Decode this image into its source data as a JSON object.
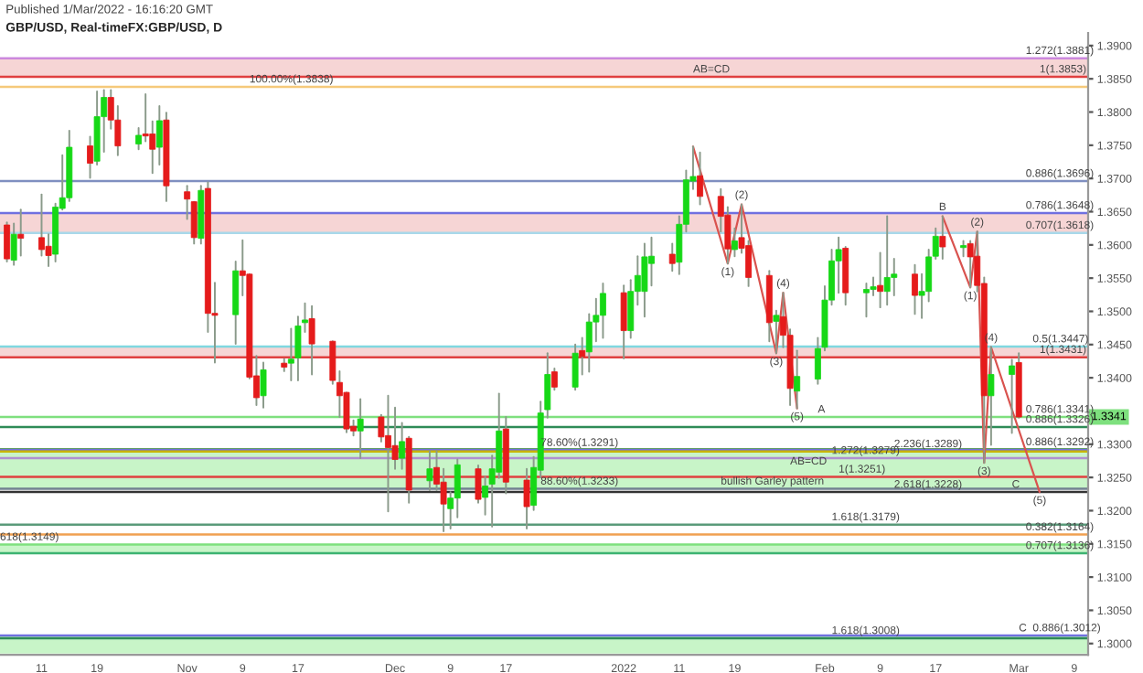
{
  "chart_data": {
    "type": "candlestick",
    "title": "GBP/USD, Real-timeFX:GBP/USD, D",
    "subtitle": "Published 1/Mar/2022 - 16:16:20 GMT",
    "x": [
      "2021-10-06",
      "2021-10-07",
      "2021-10-08",
      "2021-10-11",
      "2021-10-12",
      "2021-10-13",
      "2021-10-14",
      "2021-10-15",
      "2021-10-18",
      "2021-10-19",
      "2021-10-20",
      "2021-10-21",
      "2021-10-22",
      "2021-10-25",
      "2021-10-26",
      "2021-10-27",
      "2021-10-28",
      "2021-10-29",
      "2021-11-01",
      "2021-11-02",
      "2021-11-03",
      "2021-11-04",
      "2021-11-05",
      "2021-11-08",
      "2021-11-09",
      "2021-11-10",
      "2021-11-11",
      "2021-11-12",
      "2021-11-15",
      "2021-11-16",
      "2021-11-17",
      "2021-11-18",
      "2021-11-19",
      "2021-11-22",
      "2021-11-23",
      "2021-11-24",
      "2021-11-25",
      "2021-11-26",
      "2021-11-29",
      "2021-11-30",
      "2021-12-01",
      "2021-12-02",
      "2021-12-03",
      "2021-12-06",
      "2021-12-07",
      "2021-12-08",
      "2021-12-09",
      "2021-12-10",
      "2021-12-13",
      "2021-12-14",
      "2021-12-15",
      "2021-12-16",
      "2021-12-17",
      "2021-12-20",
      "2021-12-21",
      "2021-12-22",
      "2021-12-23",
      "2021-12-24",
      "2021-12-27",
      "2021-12-28",
      "2021-12-29",
      "2021-12-30",
      "2021-12-31",
      "2022-01-03",
      "2022-01-04",
      "2022-01-05",
      "2022-01-06",
      "2022-01-07",
      "2022-01-10",
      "2022-01-11",
      "2022-01-12",
      "2022-01-13",
      "2022-01-14",
      "2022-01-17",
      "2022-01-18",
      "2022-01-19",
      "2022-01-20",
      "2022-01-21",
      "2022-01-24",
      "2022-01-25",
      "2022-01-26",
      "2022-01-27",
      "2022-01-28",
      "2022-01-31",
      "2022-02-01",
      "2022-02-02",
      "2022-02-03",
      "2022-02-04",
      "2022-02-07",
      "2022-02-08",
      "2022-02-09",
      "2022-02-10",
      "2022-02-11",
      "2022-02-14",
      "2022-02-15",
      "2022-02-16",
      "2022-02-17",
      "2022-02-18",
      "2022-02-21",
      "2022-02-22",
      "2022-02-23",
      "2022-02-24",
      "2022-02-25",
      "2022-02-28",
      "2022-03-01"
    ],
    "ohlc": [
      [
        1.363,
        1.3634,
        1.3575,
        1.3579
      ],
      [
        1.3577,
        1.3632,
        1.357,
        1.3616
      ],
      [
        1.3616,
        1.3653,
        1.3584,
        1.361
      ],
      [
        1.3611,
        1.3676,
        1.3584,
        1.3593
      ],
      [
        1.3598,
        1.3616,
        1.3568,
        1.3584
      ],
      [
        1.3586,
        1.3662,
        1.3575,
        1.3657
      ],
      [
        1.3655,
        1.3735,
        1.3653,
        1.3671
      ],
      [
        1.3671,
        1.3772,
        1.3666,
        1.3747
      ],
      [
        1.3749,
        1.3763,
        1.3701,
        1.3723
      ],
      [
        1.3726,
        1.3831,
        1.3721,
        1.3793
      ],
      [
        1.3793,
        1.3833,
        1.374,
        1.3822
      ],
      [
        1.3822,
        1.3833,
        1.3775,
        1.3788
      ],
      [
        1.3788,
        1.3809,
        1.3735,
        1.3749
      ],
      [
        1.3752,
        1.3776,
        1.3744,
        1.3765
      ],
      [
        1.3767,
        1.3827,
        1.3756,
        1.3764
      ],
      [
        1.3767,
        1.3786,
        1.3708,
        1.3744
      ],
      [
        1.3747,
        1.3809,
        1.3721,
        1.3787
      ],
      [
        1.3788,
        1.3799,
        1.3666,
        1.3689
      ],
      [
        1.368,
        1.3689,
        1.3639,
        1.3669
      ],
      [
        1.3665,
        1.3665,
        1.3602,
        1.3611
      ],
      [
        1.361,
        1.3689,
        1.3602,
        1.3682
      ],
      [
        1.3685,
        1.3694,
        1.3469,
        1.3497
      ],
      [
        1.3497,
        1.3543,
        1.3423,
        1.3494
      ],
      [
        1.3495,
        1.3575,
        1.3451,
        1.3561
      ],
      [
        1.3561,
        1.3607,
        1.3524,
        1.3554
      ],
      [
        1.3556,
        1.3556,
        1.3399,
        1.3401
      ],
      [
        1.3403,
        1.3433,
        1.3359,
        1.337
      ],
      [
        1.3373,
        1.3423,
        1.3355,
        1.3412
      ],
      [
        1.3422,
        1.3428,
        1.341,
        1.3416
      ],
      [
        1.3422,
        1.3474,
        1.3396,
        1.3428
      ],
      [
        1.343,
        1.3492,
        1.3396,
        1.3478
      ],
      [
        1.3483,
        1.3512,
        1.3469,
        1.3487
      ],
      [
        1.3489,
        1.3508,
        1.3405,
        1.3451
      ],
      [
        1.3455,
        1.3455,
        1.3391,
        1.3396
      ],
      [
        1.3393,
        1.341,
        1.3341,
        1.3373
      ],
      [
        1.3378,
        1.3378,
        1.3318,
        1.3323
      ],
      [
        1.3327,
        1.3336,
        1.3313,
        1.332
      ],
      [
        1.332,
        1.3368,
        1.3279,
        1.3338
      ],
      [
        1.3341,
        1.3344,
        1.3304,
        1.3311
      ],
      [
        1.3313,
        1.3373,
        1.3199,
        1.3295
      ],
      [
        1.3298,
        1.3355,
        1.3263,
        1.3277
      ],
      [
        1.3279,
        1.3332,
        1.3263,
        1.3304
      ],
      [
        1.3309,
        1.3311,
        1.3212,
        1.3231
      ],
      [
        1.3245,
        1.3289,
        1.3231,
        1.3263
      ],
      [
        1.3265,
        1.3289,
        1.3231,
        1.324
      ],
      [
        1.3243,
        1.3263,
        1.3169,
        1.321
      ],
      [
        1.3203,
        1.3228,
        1.3173,
        1.3219
      ],
      [
        1.3219,
        1.3277,
        1.319,
        1.3269
      ],
      [
        1.3263,
        1.3268,
        1.3212,
        1.3217
      ],
      [
        1.322,
        1.3251,
        1.3194,
        1.3237
      ],
      [
        1.324,
        1.3283,
        1.3176,
        1.3263
      ],
      [
        1.3258,
        1.3376,
        1.3249,
        1.332
      ],
      [
        1.3323,
        1.3341,
        1.3226,
        1.3243
      ],
      [
        1.3246,
        1.3263,
        1.3173,
        1.3206
      ],
      [
        1.3208,
        1.3281,
        1.3201,
        1.3265
      ],
      [
        1.3261,
        1.3364,
        1.325,
        1.3347
      ],
      [
        1.3352,
        1.3437,
        1.334,
        1.3405
      ],
      [
        1.3409,
        1.3414,
        1.3382,
        1.3386
      ],
      [
        1.3386,
        1.345,
        1.3382,
        1.3437
      ],
      [
        1.3441,
        1.346,
        1.3405,
        1.3432
      ],
      [
        1.3439,
        1.3496,
        1.3409,
        1.3484
      ],
      [
        1.3484,
        1.3519,
        1.3455,
        1.3494
      ],
      [
        1.3494,
        1.3542,
        1.346,
        1.3527
      ],
      [
        1.3528,
        1.3539,
        1.3429,
        1.3471
      ],
      [
        1.3471,
        1.3547,
        1.346,
        1.353
      ],
      [
        1.353,
        1.3583,
        1.351,
        1.3554
      ],
      [
        1.353,
        1.3602,
        1.3492,
        1.3582
      ],
      [
        1.3572,
        1.3611,
        1.3539,
        1.3583
      ],
      [
        1.3586,
        1.3602,
        1.3561,
        1.3572
      ],
      [
        1.3574,
        1.3643,
        1.3556,
        1.3631
      ],
      [
        1.3631,
        1.3712,
        1.362,
        1.3698
      ],
      [
        1.3696,
        1.3748,
        1.3684,
        1.3703
      ],
      [
        1.3704,
        1.3739,
        1.3661,
        1.3673
      ],
      [
        1.3673,
        1.3684,
        1.362,
        1.3643
      ],
      [
        1.3645,
        1.3657,
        1.3572,
        1.3594
      ],
      [
        1.3593,
        1.3625,
        1.3583,
        1.3606
      ],
      [
        1.3611,
        1.3661,
        1.3588,
        1.3595
      ],
      [
        1.3599,
        1.3606,
        1.3538,
        1.3551
      ],
      [
        1.3554,
        1.3561,
        1.3455,
        1.3483
      ],
      [
        1.3485,
        1.3501,
        1.3437,
        1.3494
      ],
      [
        1.3492,
        1.3528,
        1.3446,
        1.3464
      ],
      [
        1.3464,
        1.3473,
        1.3359,
        1.3384
      ],
      [
        1.338,
        1.3441,
        1.3354,
        1.3402
      ],
      [
        1.3398,
        1.346,
        1.3391,
        1.3444
      ],
      [
        1.3446,
        1.3538,
        1.3441,
        1.3517
      ],
      [
        1.3517,
        1.3593,
        1.351,
        1.3576
      ],
      [
        1.3576,
        1.3611,
        1.3528,
        1.3593
      ],
      [
        1.3595,
        1.3597,
        1.351,
        1.3528
      ],
      [
        1.3528,
        1.3542,
        1.3492,
        1.3533
      ],
      [
        1.3533,
        1.3551,
        1.3524,
        1.3537
      ],
      [
        1.3539,
        1.3588,
        1.3506,
        1.353
      ],
      [
        1.353,
        1.3643,
        1.351,
        1.3551
      ],
      [
        1.3551,
        1.3579,
        1.3524,
        1.3556
      ],
      [
        1.3556,
        1.357,
        1.3496,
        1.3524
      ],
      [
        1.3524,
        1.3556,
        1.349,
        1.353
      ],
      [
        1.353,
        1.3593,
        1.3515,
        1.3582
      ],
      [
        1.3583,
        1.3625,
        1.3579,
        1.3613
      ],
      [
        1.3613,
        1.3643,
        1.3579,
        1.3597
      ],
      [
        1.3596,
        1.3606,
        1.3583,
        1.3599
      ],
      [
        1.3602,
        1.3606,
        1.3536,
        1.3582
      ],
      [
        1.3583,
        1.362,
        1.353,
        1.3539
      ],
      [
        1.3542,
        1.3551,
        1.3272,
        1.3373
      ],
      [
        1.3373,
        1.3446,
        1.3299,
        1.3405
      ],
      [
        1.3405,
        1.3427,
        1.3317,
        1.3418
      ],
      [
        1.3423,
        1.3437,
        1.334,
        1.3341
      ]
    ],
    "series": [
      {
        "type": "line",
        "color": "#d9534f",
        "x": [
          "2022-01-13",
          "2022-01-18",
          "2022-01-20",
          "2022-01-25",
          "2022-01-26",
          "2022-01-28"
        ],
        "values": [
          1.3748,
          1.3572,
          1.3661,
          1.3437,
          1.3528,
          1.3354
        ]
      },
      {
        "type": "line",
        "color": "#d9534f",
        "x": [
          "2022-02-18",
          "2022-02-22",
          "2022-02-23",
          "2022-02-24",
          "2022-02-25",
          "2022-03-04"
        ],
        "values": [
          1.3643,
          1.3536,
          1.362,
          1.3272,
          1.3446,
          1.3228
        ]
      }
    ],
    "xlim": [
      "2021-10-05",
      "2022-03-11"
    ],
    "xticks": [
      {
        "value": "2021-10-11",
        "label": "11"
      },
      {
        "value": "2021-10-19",
        "label": "19"
      },
      {
        "value": "2021-11-01",
        "label": "Nov"
      },
      {
        "value": "2021-11-09",
        "label": "9"
      },
      {
        "value": "2021-11-17",
        "label": "17"
      },
      {
        "value": "2021-12-01",
        "label": "Dec"
      },
      {
        "value": "2021-12-09",
        "label": "9"
      },
      {
        "value": "2021-12-17",
        "label": "17"
      },
      {
        "value": "2022-01-03",
        "label": "2022"
      },
      {
        "value": "2022-01-11",
        "label": "11"
      },
      {
        "value": "2022-01-19",
        "label": "19"
      },
      {
        "value": "2022-02-01",
        "label": "Feb"
      },
      {
        "value": "2022-02-09",
        "label": "9"
      },
      {
        "value": "2022-02-17",
        "label": "17"
      },
      {
        "value": "2022-03-01",
        "label": "Mar"
      },
      {
        "value": "2022-03-09",
        "label": "9"
      }
    ],
    "ylim": [
      1.2983,
      1.3919
    ],
    "yticks": [
      {
        "value": 1.3,
        "label": "1.3000"
      },
      {
        "value": 1.305,
        "label": "1.3050"
      },
      {
        "value": 1.31,
        "label": "1.3100"
      },
      {
        "value": 1.315,
        "label": "1.3150"
      },
      {
        "value": 1.32,
        "label": "1.3200"
      },
      {
        "value": 1.325,
        "label": "1.3250"
      },
      {
        "value": 1.33,
        "label": "1.3300"
      },
      {
        "value": 1.335,
        "label": null
      },
      {
        "value": 1.34,
        "label": "1.3400"
      },
      {
        "value": 1.345,
        "label": "1.3450"
      },
      {
        "value": 1.35,
        "label": "1.3500"
      },
      {
        "value": 1.355,
        "label": "1.3550"
      },
      {
        "value": 1.36,
        "label": "1.3600"
      },
      {
        "value": 1.365,
        "label": "1.3650"
      },
      {
        "value": 1.37,
        "label": "1.3700"
      },
      {
        "value": 1.375,
        "label": "1.3750"
      },
      {
        "value": 1.38,
        "label": "1.3800"
      },
      {
        "value": 1.385,
        "label": "1.3850"
      },
      {
        "value": 1.39,
        "label": "1.3900"
      }
    ],
    "ref_lines": [
      {
        "axis": "y",
        "value": 1.3881,
        "color": "#cc88dd"
      },
      {
        "axis": "y",
        "value": 1.3853,
        "color": "#e04040"
      },
      {
        "axis": "y",
        "value": 1.3838,
        "color": "#f5c97a"
      },
      {
        "axis": "y",
        "value": 1.3696,
        "color": "#7f8fc0"
      },
      {
        "axis": "y",
        "value": 1.3648,
        "color": "#7070e0"
      },
      {
        "axis": "y",
        "value": 1.3618,
        "color": "#a8d8ea"
      },
      {
        "axis": "y",
        "value": 1.3447,
        "color": "#7fd8e0"
      },
      {
        "axis": "y",
        "value": 1.3431,
        "color": "#e04040"
      },
      {
        "axis": "y",
        "value": 1.3341,
        "color": "#7ee07e",
        "label": "1.3341"
      },
      {
        "axis": "y",
        "value": 1.3326,
        "color": "#2e8b57"
      },
      {
        "axis": "y",
        "value": 1.3292,
        "color": "#2e7d32"
      },
      {
        "axis": "y",
        "value": 1.3291,
        "color": "#7070e0"
      },
      {
        "axis": "y",
        "value": 1.3289,
        "color": "#c8b400"
      },
      {
        "axis": "y",
        "value": 1.3279,
        "color": "#b090d0"
      },
      {
        "axis": "y",
        "value": 1.3251,
        "color": "#e04040"
      },
      {
        "axis": "y",
        "value": 1.3233,
        "color": "#708090"
      },
      {
        "axis": "y",
        "value": 1.3228,
        "color": "#333333"
      },
      {
        "axis": "y",
        "value": 1.3179,
        "color": "#5a9a7a"
      },
      {
        "axis": "y",
        "value": 1.3164,
        "color": "#f0a050"
      },
      {
        "axis": "y",
        "value": 1.3149,
        "color": "#7ee07e"
      },
      {
        "axis": "y",
        "value": 1.3136,
        "color": "#3cb371"
      },
      {
        "axis": "y",
        "value": 1.3012,
        "color": "#7070e0"
      },
      {
        "axis": "y",
        "value": 1.3008,
        "color": "#2e8b57"
      }
    ],
    "bands": [
      {
        "axis": "y",
        "from": 1.3853,
        "to": 1.3881,
        "color": "#f6d5d5"
      },
      {
        "axis": "y",
        "from": 1.3618,
        "to": 1.3648,
        "color": "#f6d5d5"
      },
      {
        "axis": "y",
        "from": 1.3431,
        "to": 1.3447,
        "color": "#f6d5d5"
      },
      {
        "axis": "y",
        "from": 1.3233,
        "to": 1.3291,
        "color": "#c8f5c8"
      },
      {
        "axis": "y",
        "from": 1.3136,
        "to": 1.3149,
        "color": "#c8f5c8"
      },
      {
        "axis": "y",
        "from": 1.2985,
        "to": 1.3012,
        "color": "#c8f5c8"
      }
    ],
    "annotations": [
      {
        "text": "1.272(1.3881)",
        "x": "2022-03-02",
        "y": 1.3881
      },
      {
        "text": "1(1.3853)",
        "x": "2022-03-04",
        "y": 1.3853
      },
      {
        "text": "100.00%(1.3838)",
        "x": "2021-11-10",
        "y": 1.3838
      },
      {
        "text": "0.886(1.3696)",
        "x": "2022-03-02",
        "y": 1.3696
      },
      {
        "text": "0.786(1.3648)",
        "x": "2022-03-02",
        "y": 1.3648
      },
      {
        "text": "0.707(1.3618)",
        "x": "2022-03-02",
        "y": 1.3618
      },
      {
        "text": "0.5(1.3447)",
        "x": "2022-03-03",
        "y": 1.3447
      },
      {
        "text": "1(1.3431)",
        "x": "2022-03-04",
        "y": 1.3431
      },
      {
        "text": "0.786(1.3341)",
        "x": "2022-03-02",
        "y": 1.3341
      },
      {
        "text": "0.886(1.3326)",
        "x": "2022-03-02",
        "y": 1.3326
      },
      {
        "text": "0.886(1.3292)",
        "x": "2022-03-02",
        "y": 1.3292
      },
      {
        "text": "78.60%(1.3291)",
        "x": "2021-12-22",
        "y": 1.3291
      },
      {
        "text": "2.236(1.3289)",
        "x": "2022-02-11",
        "y": 1.3289
      },
      {
        "text": "1.272(1.3279)",
        "x": "2022-02-02",
        "y": 1.3279
      },
      {
        "text": "1(1.3251)",
        "x": "2022-02-03",
        "y": 1.3251
      },
      {
        "text": "88.60%(1.3233)",
        "x": "2021-12-22",
        "y": 1.3233
      },
      {
        "text": "2.618(1.3228)",
        "x": "2022-02-11",
        "y": 1.3228
      },
      {
        "text": "1.618(1.3179)",
        "x": "2022-02-02",
        "y": 1.3179
      },
      {
        "text": "0.382(1.3164)",
        "x": "2022-03-02",
        "y": 1.3164
      },
      {
        "text": "618(1.3149)",
        "x": "2021-10-05",
        "y": 1.3149
      },
      {
        "text": "0.707(1.3136)",
        "x": "2022-03-02",
        "y": 1.3136
      },
      {
        "text": "1.618(1.3008)",
        "x": "2022-02-02",
        "y": 1.3008
      },
      {
        "text": "0.886(1.3012)",
        "x": "2022-03-03",
        "y": 1.3012
      },
      {
        "text": "AB=CD",
        "x": "2022-01-13",
        "y": 1.3853
      },
      {
        "text": "AB=CD",
        "x": "2022-01-27",
        "y": 1.3263
      },
      {
        "text": "bullish Garley pattern",
        "x": "2022-01-17",
        "y": 1.3233
      },
      {
        "text": "(1)",
        "x": "2022-01-18",
        "y": 1.3572
      },
      {
        "text": "(2)",
        "x": "2022-01-20",
        "y": 1.3661
      },
      {
        "text": "(3)",
        "x": "2022-01-25",
        "y": 1.3437
      },
      {
        "text": "(4)",
        "x": "2022-01-26",
        "y": 1.3528
      },
      {
        "text": "(5)",
        "x": "2022-01-28",
        "y": 1.3354
      },
      {
        "text": "A",
        "x": "2022-01-31",
        "y": 1.3341
      },
      {
        "text": "B",
        "x": "2022-02-18",
        "y": 1.3643
      },
      {
        "text": "(1)",
        "x": "2022-02-22",
        "y": 1.3536
      },
      {
        "text": "(2)",
        "x": "2022-02-23",
        "y": 1.362
      },
      {
        "text": "(3)",
        "x": "2022-02-24",
        "y": 1.3272
      },
      {
        "text": "(4)",
        "x": "2022-02-25",
        "y": 1.3446
      },
      {
        "text": "(5)",
        "x": "2022-03-04",
        "y": 1.3228
      },
      {
        "text": "C",
        "x": "2022-02-28",
        "y": 1.3228
      },
      {
        "text": "C",
        "x": "2022-03-01",
        "y": 1.3012
      }
    ]
  }
}
